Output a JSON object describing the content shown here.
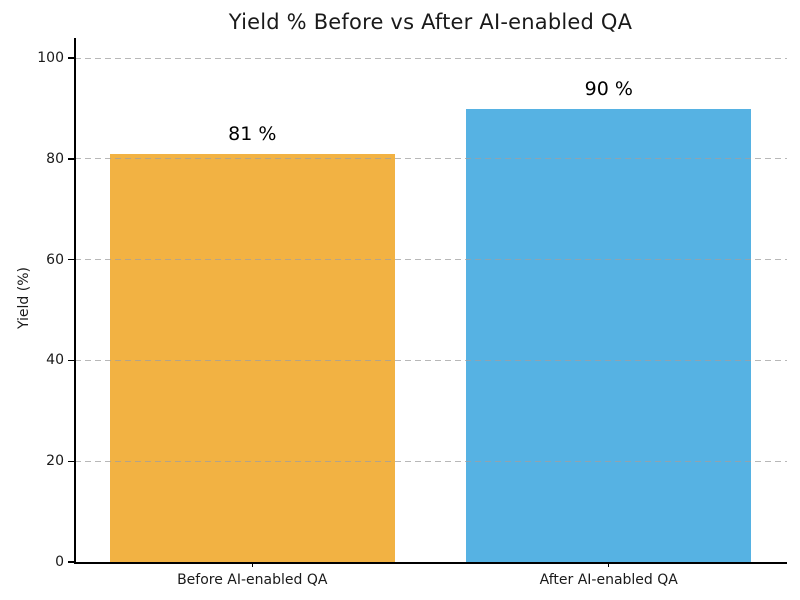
{
  "chart_data": {
    "type": "bar",
    "title": "Yield % Before vs After AI-enabled QA",
    "xlabel": "",
    "ylabel": "Yield (%)",
    "categories": [
      "Before AI-enabled QA",
      "After AI-enabled QA"
    ],
    "values": [
      81,
      90
    ],
    "value_labels": [
      "81 %",
      "90 %"
    ],
    "bar_colors": [
      "#F2B243",
      "#56B2E3"
    ],
    "yticks": [
      0,
      20,
      40,
      60,
      80,
      100
    ],
    "ylim": [
      0,
      104
    ],
    "grid": {
      "axis": "y",
      "style": "dashed",
      "color": "#a0a0a0",
      "drawn_over_bars": true
    },
    "legend": "none",
    "spines": [
      "left",
      "bottom"
    ]
  }
}
